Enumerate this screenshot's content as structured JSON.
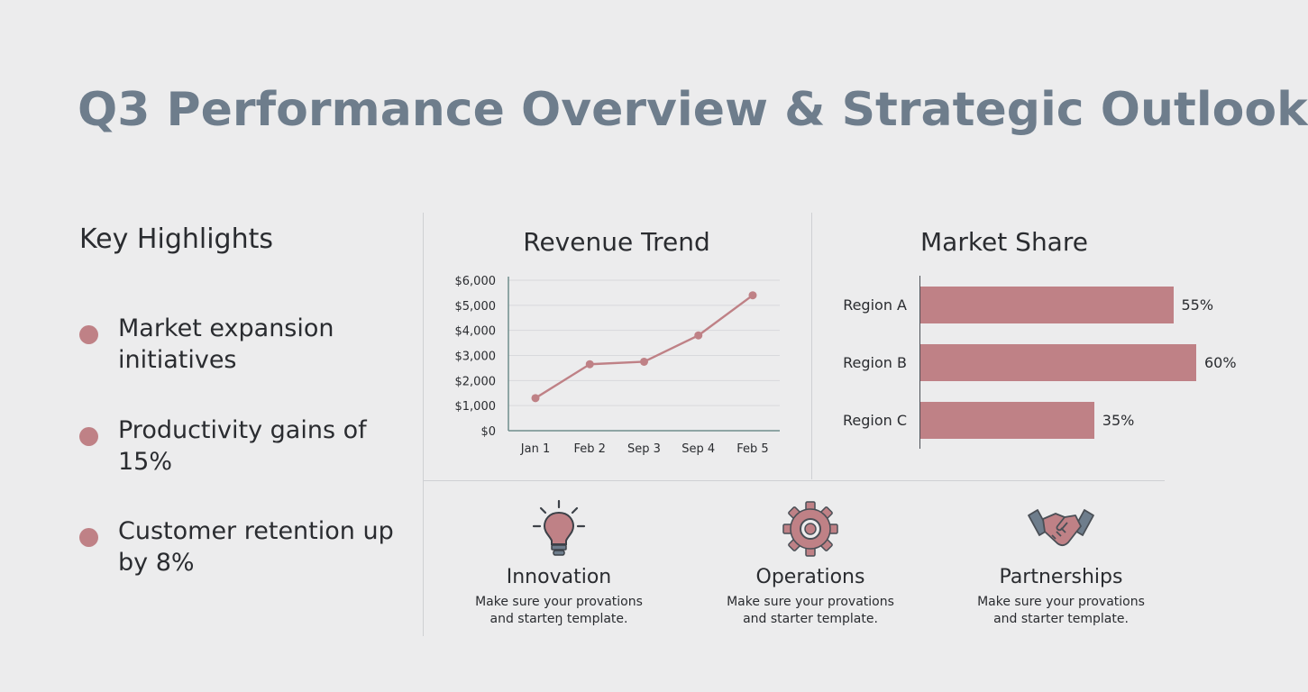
{
  "slide": {
    "title": "Q3 Performance Overview & Strategic Outlook"
  },
  "highlights": {
    "heading": "Key Highlights",
    "items": [
      {
        "text": "Market expansion initiatives"
      },
      {
        "text": "Productivity gains of 15%"
      },
      {
        "text": "Customer retention up by 8%"
      }
    ]
  },
  "colors": {
    "accent": "#bf8186",
    "title": "#6e7d8c",
    "axis": "#6f8d8c",
    "grid": "#d8d9dc"
  },
  "chart_data": [
    {
      "type": "line",
      "title": "Revenue Trend",
      "categories": [
        "Jan 1",
        "Feb 2",
        "Sep 3",
        "Sep 4",
        "Feb 5"
      ],
      "series": [
        {
          "values": [
            1300,
            2650,
            2750,
            3800,
            5400
          ]
        }
      ],
      "ylim": [
        0,
        6000
      ],
      "yticks": [
        0,
        1000,
        2000,
        3000,
        4000,
        5000,
        6000
      ],
      "ytick_labels": [
        "$0",
        "$1,000",
        "$2,000",
        "$3,000",
        "$4,000",
        "$5,000",
        "$6,000"
      ],
      "grid": true,
      "xlabel": "",
      "ylabel": ""
    },
    {
      "type": "bar",
      "orientation": "horizontal",
      "title": "Market Share",
      "categories": [
        "Region A",
        "Region B",
        "Region C"
      ],
      "values": [
        55,
        60,
        35
      ],
      "value_labels": [
        "55%",
        "60%",
        "35%"
      ],
      "xlabel": "",
      "ylabel": ""
    }
  ],
  "features": [
    {
      "icon": "lightbulb-icon",
      "title": "Innovation",
      "desc_line1": "Make sure your provations",
      "desc_line2": "and starteŋ template."
    },
    {
      "icon": "gear-icon",
      "title": "Operations",
      "desc_line1": "Make sure your provations",
      "desc_line2": "and starter template."
    },
    {
      "icon": "handshake-icon",
      "title": "Partnerships",
      "desc_line1": "Make sure your provations",
      "desc_line2": "and starter template."
    }
  ]
}
